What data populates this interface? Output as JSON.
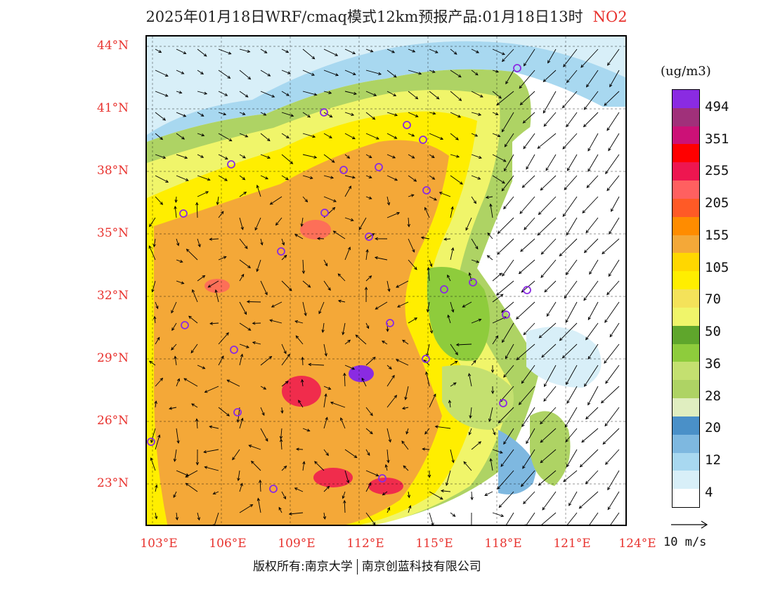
{
  "title": {
    "text": "2025年01月18日WRF/cmaq模式12km预报产品:01月18日13时",
    "species": "NO2"
  },
  "map": {
    "lat_labels": [
      "44°N",
      "41°N",
      "38°N",
      "35°N",
      "32°N",
      "29°N",
      "26°N",
      "23°N"
    ],
    "lon_labels": [
      "103°E",
      "106°E",
      "109°E",
      "112°E",
      "115°E",
      "118°E",
      "121°E",
      "124°E"
    ],
    "colors": {
      "land_high": "#f7a92c",
      "land_mid": "#fce100",
      "land_low": "#f0f040",
      "green": "#7fc23a",
      "water": "#ffffff",
      "blue": "#5b9fd8",
      "hotspot": "#e8334a",
      "city_marker": "#8a2be2"
    }
  },
  "colorbar": {
    "unit": "(ug/m3)",
    "labels": [
      "494",
      "351",
      "255",
      "205",
      "155",
      "105",
      "70",
      "50",
      "36",
      "28",
      "20",
      "12",
      "4"
    ],
    "colors": [
      "#8a2be2",
      "#a0307a",
      "#cc1177",
      "#ff0000",
      "#ee1650",
      "#ff6060",
      "#ff5a26",
      "#ff8c00",
      "#f4a838",
      "#ffd700",
      "#ffee00",
      "#f4e25a",
      "#f0f56a",
      "#5fa62c",
      "#8ecc3c",
      "#c4e070",
      "#aed364",
      "#e0eec0",
      "#4a90c8",
      "#7eb8e0",
      "#a8d8f0",
      "#d8eff8",
      "#ffffff"
    ]
  },
  "wind_reference": {
    "label": "10 m/s"
  },
  "footer": {
    "left": "版权所有:南京大学",
    "right": "南京创蓝科技有限公司"
  }
}
